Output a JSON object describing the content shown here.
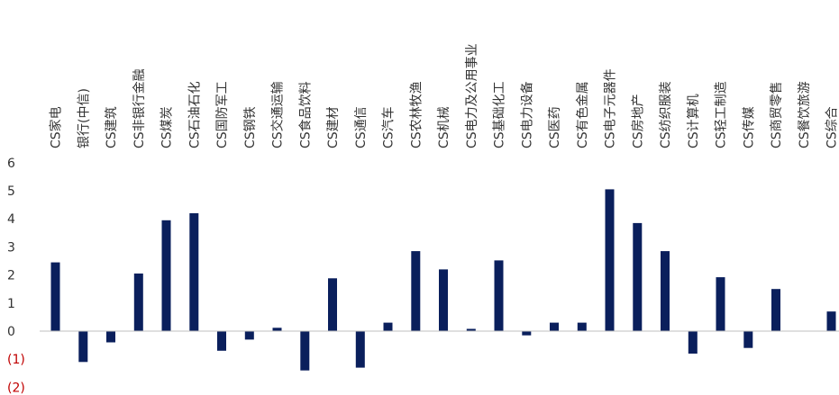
{
  "chart_data": {
    "type": "bar",
    "title": "",
    "xlabel": "",
    "ylabel": "",
    "ylim": [
      -2,
      6
    ],
    "y_ticks": [
      {
        "value": 6,
        "label": "6"
      },
      {
        "value": 5,
        "label": "5"
      },
      {
        "value": 4,
        "label": "4"
      },
      {
        "value": 3,
        "label": "3"
      },
      {
        "value": 2,
        "label": "2"
      },
      {
        "value": 1,
        "label": "1"
      },
      {
        "value": 0,
        "label": "0"
      },
      {
        "value": -1,
        "label": "(1)"
      },
      {
        "value": -2,
        "label": "(2)"
      }
    ],
    "grid": false,
    "legend": "none",
    "colors": {
      "bar": "#0a1f5c",
      "negative_tick": "#c00000",
      "tick": "#333333",
      "axis": "#bfbfbf"
    },
    "categories": [
      "CS家电",
      "银行(中信)",
      "CS建筑",
      "CS非银行金融",
      "CS煤炭",
      "CS石油石化",
      "CS国防军工",
      "CS钢铁",
      "CS交通运输",
      "CS食品饮料",
      "CS建材",
      "CS通信",
      "CS汽车",
      "CS农林牧渔",
      "CS机械",
      "CS电力及公用事业",
      "CS基础化工",
      "CS电力设备",
      "CS医药",
      "CS有色金属",
      "CS电子元器件",
      "CS房地产",
      "CS纺织服装",
      "CS计算机",
      "CS轻工制造",
      "CS传媒",
      "CS商贸零售",
      "CS餐饮旅游",
      "CS综合"
    ],
    "values": [
      2.45,
      -1.1,
      -0.4,
      2.05,
      3.95,
      4.2,
      -0.7,
      -0.3,
      0.12,
      -1.4,
      1.88,
      -1.3,
      0.3,
      2.85,
      2.2,
      0.08,
      2.52,
      -0.15,
      0.3,
      0.3,
      5.05,
      3.85,
      2.85,
      -0.8,
      1.92,
      -0.6,
      1.5,
      0.0,
      0.7
    ]
  }
}
